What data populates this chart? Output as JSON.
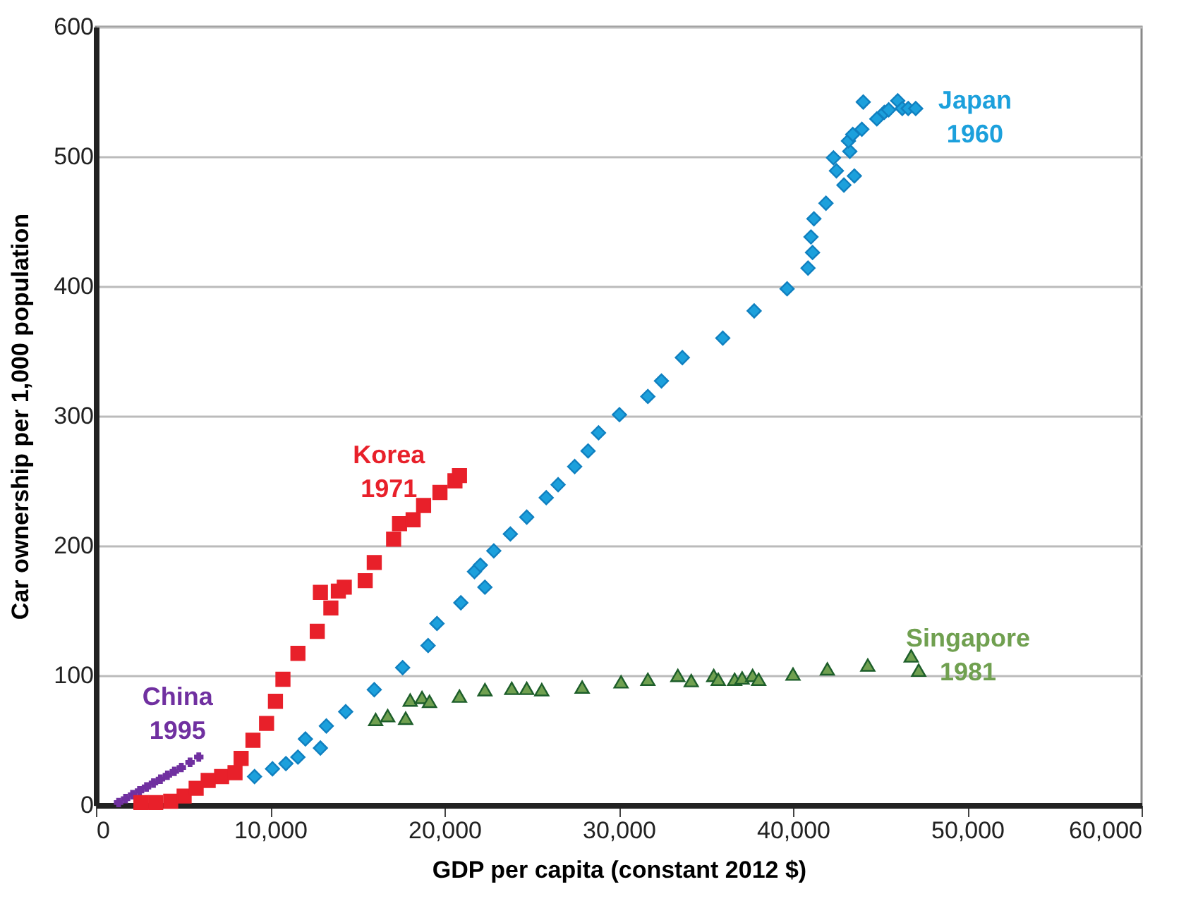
{
  "chart_data": {
    "type": "scatter",
    "xlabel": "GDP per capita (constant 2012 $)",
    "ylabel": "Car ownership per 1,000 population",
    "xlim": [
      0,
      60000
    ],
    "ylim": [
      0,
      600
    ],
    "xticks": [
      {
        "value": 0,
        "label": "0"
      },
      {
        "value": 10000,
        "label": "10,000"
      },
      {
        "value": 20000,
        "label": "20,000"
      },
      {
        "value": 30000,
        "label": "30,000"
      },
      {
        "value": 40000,
        "label": "40,000"
      },
      {
        "value": 50000,
        "label": "50,000"
      },
      {
        "value": 60000,
        "label": "60,000"
      }
    ],
    "yticks": [
      0,
      100,
      200,
      300,
      400,
      500,
      600
    ],
    "grid": "y",
    "series": [
      {
        "name": "China 1995",
        "color": "#7030a0",
        "marker": "cross",
        "x": [
          1300,
          1700,
          2100,
          2500,
          2900,
          3300,
          3700,
          4100,
          4500,
          4900,
          5400,
          5900
        ],
        "values": [
          2,
          5,
          8,
          11,
          14,
          17,
          20,
          23,
          26,
          29,
          33,
          37
        ]
      },
      {
        "name": "Korea 1971",
        "color": "#e8202a",
        "marker": "square",
        "x": [
          2580,
          3430,
          4290,
          5060,
          5750,
          6440,
          7210,
          7980,
          8330,
          9010,
          9790,
          10300,
          10730,
          11590,
          12700,
          13480,
          12880,
          13910,
          14250,
          15450,
          15970,
          17080,
          17420,
          18200,
          18800,
          19740,
          20600,
          20860
        ],
        "values": [
          2,
          2,
          3,
          7,
          13,
          19,
          22,
          25,
          36,
          50,
          63,
          80,
          97,
          117,
          134,
          152,
          164,
          165,
          168,
          173,
          187,
          205,
          217,
          220,
          231,
          241,
          250,
          254
        ]
      },
      {
        "name": "Japan 1960",
        "color": "#1ca0dc",
        "marker": "diamond",
        "x": [
          9100,
          10130,
          10900,
          11590,
          12020,
          12880,
          13220,
          14330,
          15970,
          17600,
          19060,
          19570,
          20940,
          21720,
          22060,
          22320,
          22830,
          23780,
          24720,
          25840,
          26520,
          27470,
          28240,
          28840,
          30040,
          31670,
          32450,
          33650,
          35970,
          37770,
          39660,
          40860,
          41120,
          41030,
          41200,
          41890,
          42920,
          43520,
          42490,
          42320,
          43260,
          43180,
          43430,
          43950,
          44030,
          44810,
          45240,
          45490,
          46010,
          46270,
          46610,
          47040
        ],
        "values": [
          22,
          28,
          32,
          37,
          51,
          44,
          61,
          72,
          89,
          106,
          123,
          140,
          156,
          180,
          185,
          168,
          196,
          209,
          222,
          237,
          247,
          261,
          273,
          287,
          301,
          315,
          327,
          345,
          360,
          381,
          398,
          414,
          426,
          438,
          452,
          464,
          478,
          485,
          489,
          499,
          504,
          512,
          517,
          521,
          542,
          529,
          534,
          536,
          543,
          537,
          537,
          537
        ]
      },
      {
        "name": "Singapore 1981",
        "color": "#70a050",
        "marker": "triangle",
        "x": [
          16050,
          16740,
          17770,
          18030,
          18710,
          19140,
          20860,
          22320,
          23860,
          24720,
          25580,
          27900,
          30130,
          31670,
          33390,
          34160,
          35450,
          35710,
          36650,
          37080,
          37680,
          38030,
          40000,
          41970,
          44290,
          46780,
          47210
        ],
        "values": [
          66,
          69,
          67,
          81,
          83,
          80,
          84,
          89,
          90,
          90,
          89,
          91,
          95,
          97,
          100,
          96,
          100,
          97,
          97,
          98,
          100,
          97,
          101,
          105,
          108,
          115,
          104
        ]
      }
    ]
  }
}
